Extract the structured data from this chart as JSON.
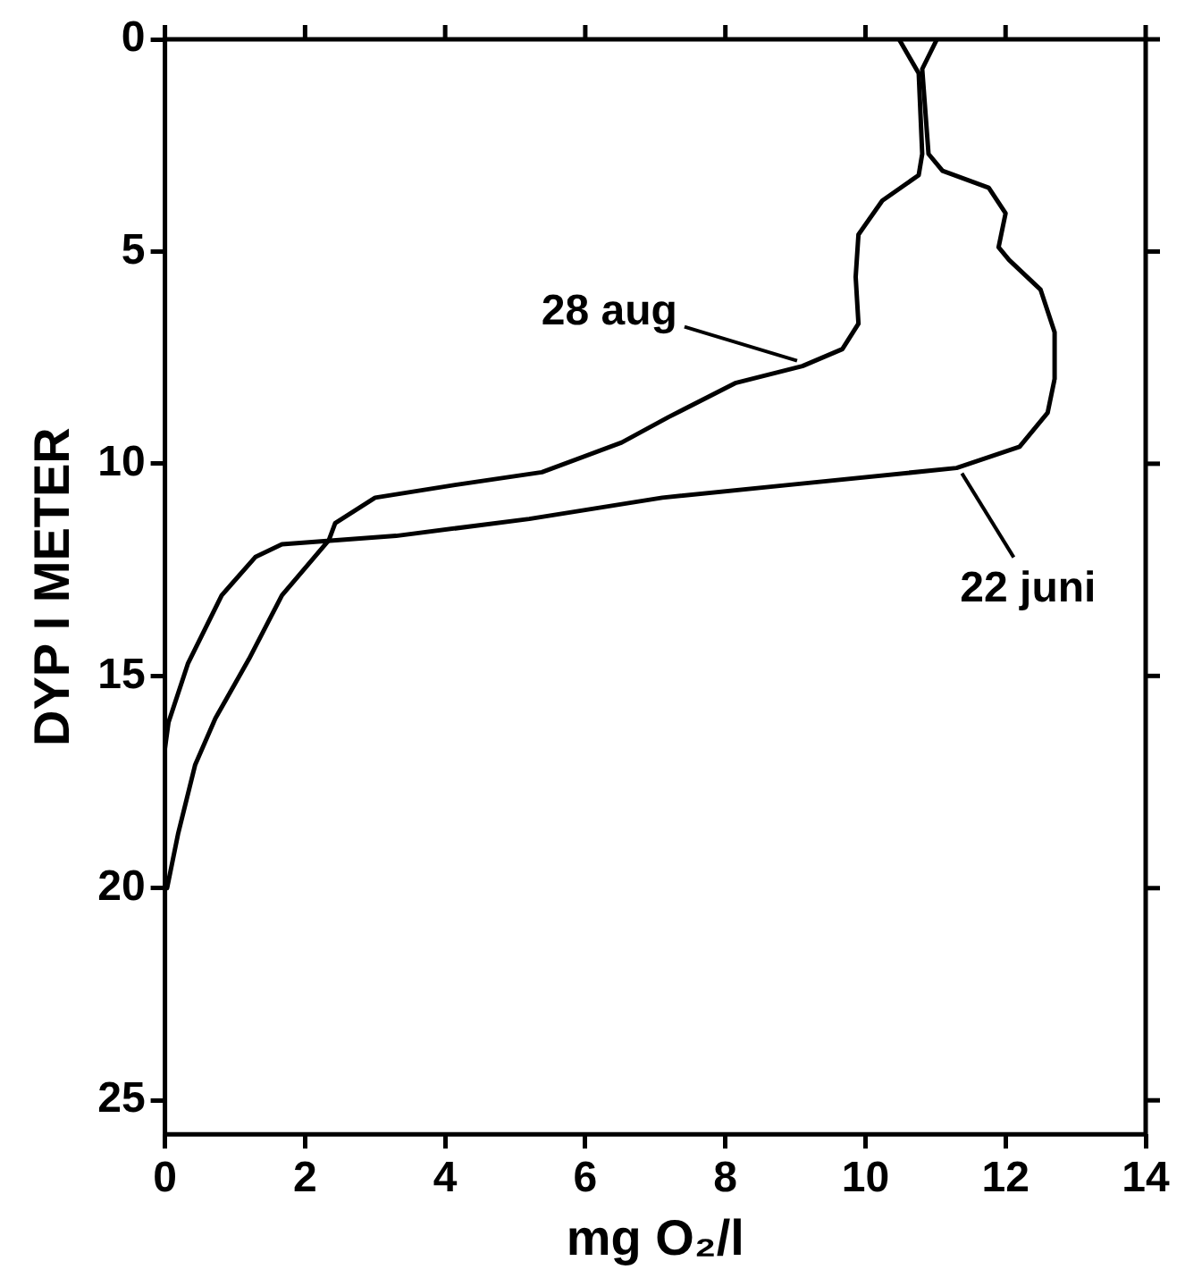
{
  "chart_data": {
    "type": "line",
    "xlabel": "mg O₂/l",
    "ylabel": "DYP I METER",
    "xlim": [
      0,
      14
    ],
    "xticks": [
      0,
      2,
      4,
      6,
      8,
      10,
      12,
      14
    ],
    "ylim": [
      25.8,
      0
    ],
    "yticks": [
      0,
      5,
      10,
      15,
      20,
      25
    ],
    "grid": false,
    "marker": "none",
    "line_style": "solid",
    "series": [
      {
        "name": "28 aug",
        "color": "#000000",
        "x": [
          10.48,
          10.76,
          10.81,
          10.76,
          10.24,
          9.9,
          9.86,
          9.9,
          9.67,
          9.1,
          8.14,
          7.19,
          6.52,
          5.38,
          4.14,
          3.0,
          2.43,
          2.34,
          1.67,
          1.2,
          0.72,
          0.43,
          0.19,
          0.03
        ],
        "values": [
          0,
          0.8,
          2.7,
          3.2,
          3.8,
          4.6,
          5.6,
          6.7,
          7.3,
          7.7,
          8.1,
          8.9,
          9.5,
          10.2,
          10.5,
          10.8,
          11.4,
          11.8,
          13.1,
          14.6,
          16.0,
          17.1,
          18.7,
          20.0
        ]
      },
      {
        "name": "22 juni",
        "color": "#000000",
        "x": [
          11.02,
          10.81,
          10.9,
          11.1,
          11.76,
          12.0,
          11.9,
          12.05,
          12.5,
          12.7,
          12.7,
          12.6,
          12.2,
          11.3,
          8.9,
          7.1,
          5.2,
          3.3,
          1.67,
          1.29,
          0.81,
          0.33,
          0.05,
          0
        ],
        "values": [
          0,
          0.7,
          2.7,
          3.1,
          3.5,
          4.1,
          4.9,
          5.2,
          5.9,
          6.9,
          8.0,
          8.8,
          9.6,
          10.1,
          10.5,
          10.8,
          11.3,
          11.7,
          11.9,
          12.2,
          13.1,
          14.7,
          16.1,
          16.7
        ]
      }
    ]
  }
}
